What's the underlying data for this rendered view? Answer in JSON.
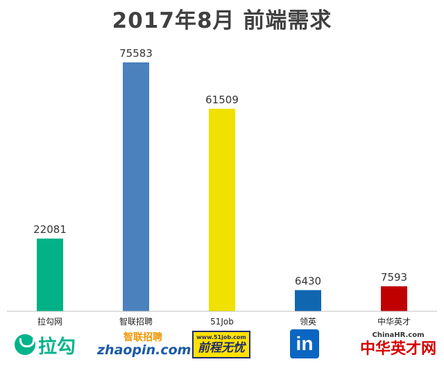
{
  "chart_data": {
    "type": "bar",
    "title": "2017年8月 前端需求",
    "categories": [
      "拉勾网",
      "智联招聘",
      "51Job",
      "领英",
      "中华英才"
    ],
    "values": [
      22081,
      75583,
      61509,
      6430,
      7593
    ],
    "colors": [
      "#00b286",
      "#4b81bd",
      "#f0e100",
      "#1066af",
      "#c00000"
    ],
    "ylim": [
      0,
      80000
    ],
    "grid": false,
    "legend": "none",
    "xlabel": "",
    "ylabel": ""
  },
  "logos": {
    "lagou": "拉勾",
    "zhaopin_cn": "智联招聘",
    "zhaopin_en": "zhaopin.com",
    "job51_url": "www.51job.com",
    "job51_cn": "前程无忧",
    "linkedin": "in",
    "chinahr_en": "ChinaHR.com",
    "chinahr_cn": "中华英才网"
  }
}
